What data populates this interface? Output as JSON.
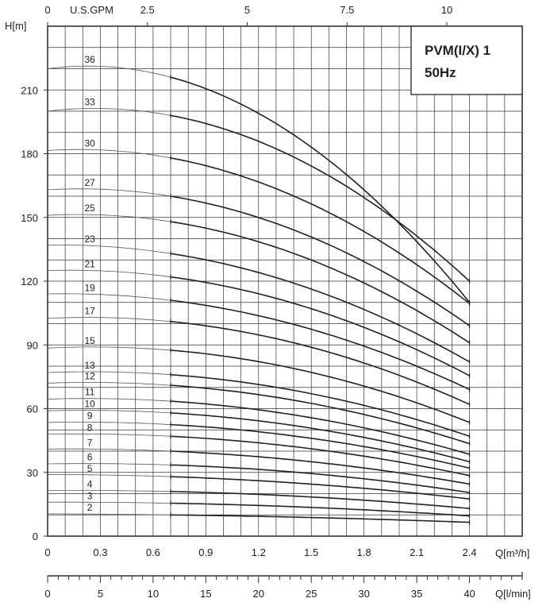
{
  "chart_data": {
    "type": "line",
    "title_lines": [
      "PVM(I/X) 1",
      "50Hz"
    ],
    "ylabel": "H[m]",
    "xlabel": "Q[m³/h]",
    "x2label": "U.S.GPM",
    "x3label": "Q[l/min]",
    "ylim": [
      0,
      240
    ],
    "xlim": [
      0,
      2.7
    ],
    "y_ticks": [
      0,
      30,
      60,
      90,
      120,
      150,
      180,
      210
    ],
    "x_ticks": [
      0,
      0.3,
      0.6,
      0.9,
      1.2,
      1.5,
      1.8,
      2.1,
      2.4
    ],
    "x_ticks_labels": [
      "0",
      "0.3",
      "0.6",
      "0.9",
      "1.2",
      "1.5",
      "1.8",
      "2.1",
      "2.4"
    ],
    "x2_ticks": [
      0,
      2.5,
      5,
      7.5,
      10
    ],
    "x2_ticks_labels": [
      "0",
      "2.5",
      "5",
      "7.5",
      "10"
    ],
    "x3_ticks": [
      0,
      5,
      10,
      15,
      20,
      25,
      30,
      35,
      40
    ],
    "x3_ticks_labels": [
      "0",
      "5",
      "10",
      "15",
      "20",
      "25",
      "30",
      "35",
      "40"
    ],
    "grid": true,
    "curve_x_end": 2.4,
    "curve_x_thick_start": 0.7,
    "series": [
      {
        "name": "2",
        "values": [
          [
            0,
            10.5
          ],
          [
            0.7,
            10
          ],
          [
            2.4,
            6.5
          ]
        ]
      },
      {
        "name": "3",
        "values": [
          [
            0,
            16
          ],
          [
            0.7,
            15.5
          ],
          [
            2.4,
            9.5
          ]
        ]
      },
      {
        "name": "4",
        "values": [
          [
            0,
            21.5
          ],
          [
            0.7,
            21
          ],
          [
            2.4,
            13
          ]
        ]
      },
      {
        "name": "5",
        "values": [
          [
            0,
            29
          ],
          [
            0.7,
            28
          ],
          [
            2.4,
            17.5
          ]
        ]
      },
      {
        "name": "6",
        "values": [
          [
            0,
            34
          ],
          [
            0.7,
            33.5
          ],
          [
            2.4,
            20.5
          ]
        ]
      },
      {
        "name": "7",
        "values": [
          [
            0,
            41
          ],
          [
            0.7,
            40
          ],
          [
            2.4,
            24.5
          ]
        ]
      },
      {
        "name": "8",
        "values": [
          [
            0,
            48
          ],
          [
            0.7,
            47
          ],
          [
            2.4,
            28.5
          ]
        ]
      },
      {
        "name": "9",
        "values": [
          [
            0,
            53.5
          ],
          [
            0.7,
            52.5
          ],
          [
            2.4,
            32
          ]
        ]
      },
      {
        "name": "10",
        "values": [
          [
            0,
            59
          ],
          [
            0.7,
            58
          ],
          [
            2.4,
            35
          ]
        ]
      },
      {
        "name": "11",
        "values": [
          [
            0,
            64.5
          ],
          [
            0.7,
            63.5
          ],
          [
            2.4,
            38.5
          ]
        ]
      },
      {
        "name": "12",
        "values": [
          [
            0,
            72
          ],
          [
            0.7,
            71
          ],
          [
            2.4,
            43.5
          ]
        ]
      },
      {
        "name": "13",
        "values": [
          [
            0,
            77
          ],
          [
            0.7,
            76
          ],
          [
            2.4,
            47
          ]
        ]
      },
      {
        "name": "15",
        "values": [
          [
            0,
            88.5
          ],
          [
            0.7,
            87.5
          ],
          [
            2.4,
            53.5
          ]
        ]
      },
      {
        "name": "17",
        "values": [
          [
            0,
            102.5
          ],
          [
            0.7,
            101
          ],
          [
            2.4,
            62
          ]
        ]
      },
      {
        "name": "19",
        "values": [
          [
            0,
            114
          ],
          [
            0.7,
            111
          ],
          [
            2.4,
            69
          ]
        ]
      },
      {
        "name": "21",
        "values": [
          [
            0,
            125
          ],
          [
            0.7,
            122
          ],
          [
            2.4,
            75.5
          ]
        ]
      },
      {
        "name": "23",
        "values": [
          [
            0,
            137
          ],
          [
            0.7,
            133
          ],
          [
            2.4,
            82
          ]
        ]
      },
      {
        "name": "25",
        "values": [
          [
            0,
            151
          ],
          [
            0.7,
            148
          ],
          [
            2.4,
            91
          ]
        ]
      },
      {
        "name": "27",
        "values": [
          [
            0,
            163
          ],
          [
            0.7,
            160
          ],
          [
            2.4,
            99
          ]
        ]
      },
      {
        "name": "30",
        "values": [
          [
            0,
            181.5
          ],
          [
            0.7,
            178
          ],
          [
            2.4,
            109.5
          ]
        ]
      },
      {
        "name": "33",
        "values": [
          [
            0,
            200
          ],
          [
            0.7,
            198
          ],
          [
            2.4,
            120
          ]
        ]
      },
      {
        "name": "36",
        "values": [
          [
            0,
            220
          ],
          [
            0.7,
            216
          ],
          [
            2.4,
            110
          ]
        ]
      }
    ]
  }
}
